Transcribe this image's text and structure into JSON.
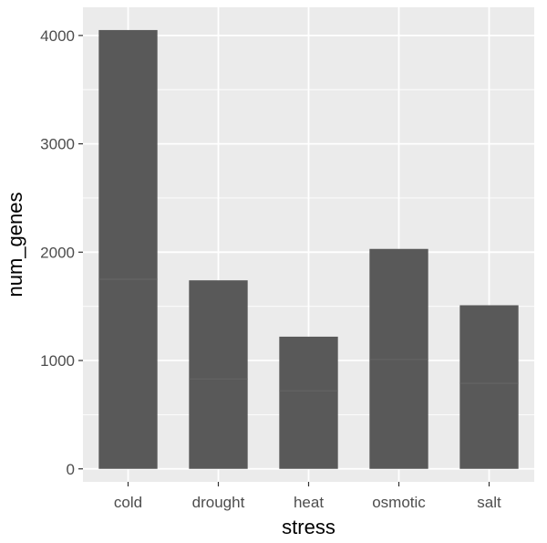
{
  "chart_data": {
    "type": "bar",
    "categories": [
      "cold",
      "drought",
      "heat",
      "osmotic",
      "salt"
    ],
    "series": [
      {
        "segments": [
          [
            1750,
            2300
          ],
          [
            830,
            910
          ],
          [
            720,
            500
          ],
          [
            1010,
            1020
          ],
          [
            790,
            720
          ]
        ]
      }
    ],
    "values": [
      4050,
      1740,
      1220,
      2030,
      1510
    ],
    "xlabel": "stress",
    "ylabel": "num_genes",
    "ylim": [
      -120,
      4260
    ],
    "yticks": [
      0,
      1000,
      2000,
      3000,
      4000
    ],
    "grid": true,
    "colors": {
      "panel": "#ebebeb",
      "grid_major": "#ffffff",
      "bar": "#595959",
      "segment_line": "#666666",
      "tick_mark": "#333333"
    }
  }
}
